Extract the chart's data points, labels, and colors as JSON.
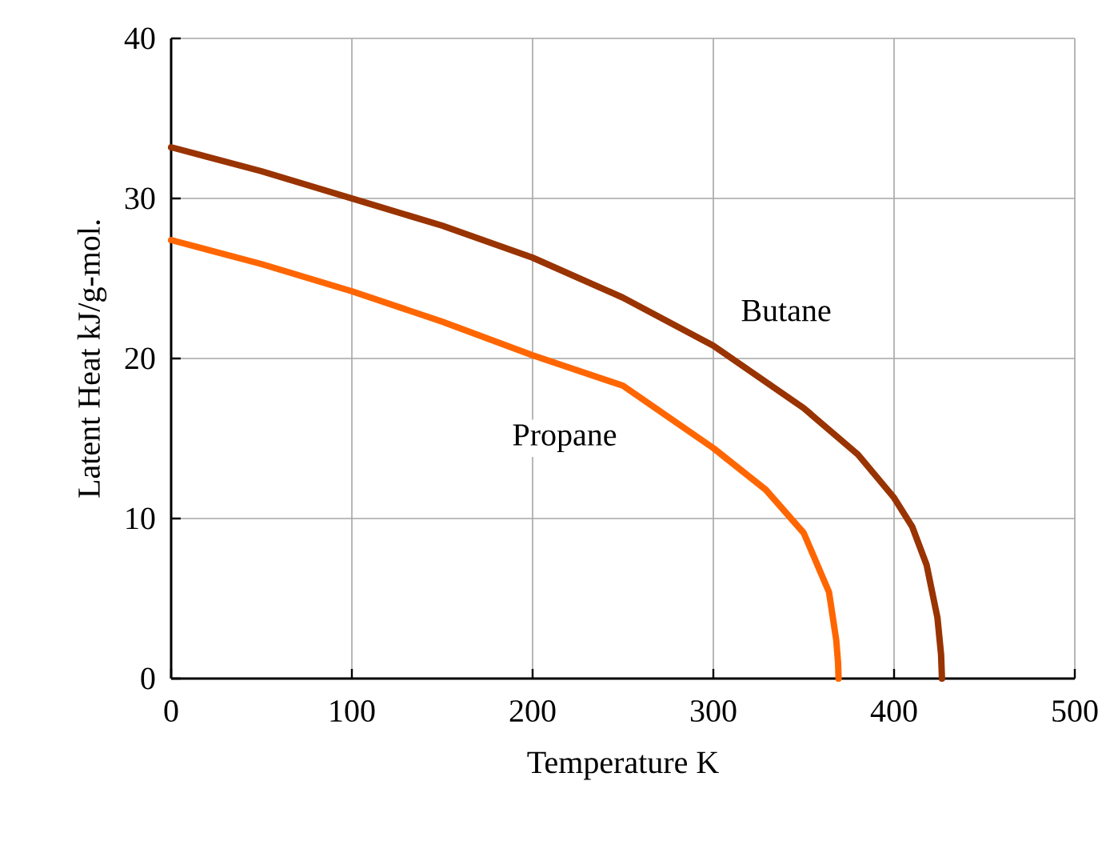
{
  "chart_data": {
    "type": "line",
    "xlabel": "Temperature   K",
    "ylabel": "Latent Heat   kJ/g-mol.",
    "xlim": [
      0,
      500
    ],
    "ylim": [
      0,
      40
    ],
    "xticks": [
      0,
      100,
      200,
      300,
      400,
      500
    ],
    "yticks": [
      0,
      10,
      20,
      30,
      40
    ],
    "grid": true,
    "line_style": "solid",
    "marker": "none",
    "series": [
      {
        "name": "Butane",
        "color": "#993300",
        "x": [
          0,
          50,
          100,
          150,
          200,
          250,
          300,
          350,
          380,
          400,
          410,
          418,
          424,
          426,
          426.5
        ],
        "values": [
          33.2,
          31.7,
          30.0,
          28.3,
          26.3,
          23.8,
          20.8,
          16.9,
          14.0,
          11.3,
          9.5,
          7.1,
          3.8,
          1.5,
          0
        ]
      },
      {
        "name": "Propane",
        "color": "#ff6600",
        "x": [
          0,
          50,
          100,
          150,
          200,
          250,
          300,
          329,
          350,
          364,
          368,
          369,
          369.3
        ],
        "values": [
          27.4,
          25.9,
          24.2,
          22.3,
          20.2,
          18.3,
          14.4,
          11.8,
          9.1,
          5.4,
          2.4,
          1.0,
          0
        ]
      }
    ]
  }
}
